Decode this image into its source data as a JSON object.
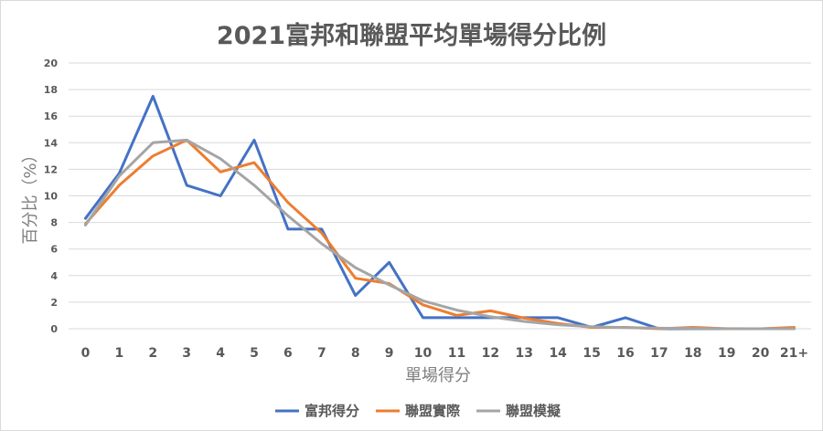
{
  "chart_data": {
    "type": "line",
    "title": "2021富邦和聯盟平均單場得分比例",
    "xlabel": "單場得分",
    "ylabel": "百分比（%）",
    "categories": [
      "0",
      "1",
      "2",
      "3",
      "4",
      "5",
      "6",
      "7",
      "8",
      "9",
      "10",
      "11",
      "12",
      "13",
      "14",
      "15",
      "16",
      "17",
      "18",
      "19",
      "20",
      "21+"
    ],
    "ylim": [
      0,
      20
    ],
    "yticks": [
      0,
      2,
      4,
      6,
      8,
      10,
      12,
      14,
      16,
      18,
      20
    ],
    "grid": true,
    "legend": "bottom",
    "series": [
      {
        "name": "富邦得分",
        "color": "#4472c4",
        "values": [
          8.3,
          11.7,
          17.5,
          10.8,
          10.0,
          14.2,
          7.5,
          7.5,
          2.5,
          5.0,
          0.83,
          0.83,
          0.83,
          0.83,
          0.83,
          0.1,
          0.83,
          0.0,
          0.0,
          0.0,
          0.0,
          0.0
        ]
      },
      {
        "name": "聯盟實際",
        "color": "#ed7d31",
        "values": [
          7.9,
          10.8,
          13.0,
          14.2,
          11.8,
          12.5,
          9.5,
          7.2,
          3.8,
          3.4,
          1.8,
          1.0,
          1.35,
          0.8,
          0.4,
          0.1,
          0.1,
          0.0,
          0.1,
          0.0,
          0.0,
          0.1
        ]
      },
      {
        "name": "聯盟模擬",
        "color": "#a5a5a5",
        "values": [
          7.8,
          11.5,
          14.0,
          14.2,
          12.8,
          10.8,
          8.5,
          6.4,
          4.6,
          3.3,
          2.1,
          1.4,
          0.9,
          0.55,
          0.3,
          0.15,
          0.08,
          0.04,
          0.02,
          0.01,
          0.0,
          0.0
        ]
      }
    ]
  }
}
